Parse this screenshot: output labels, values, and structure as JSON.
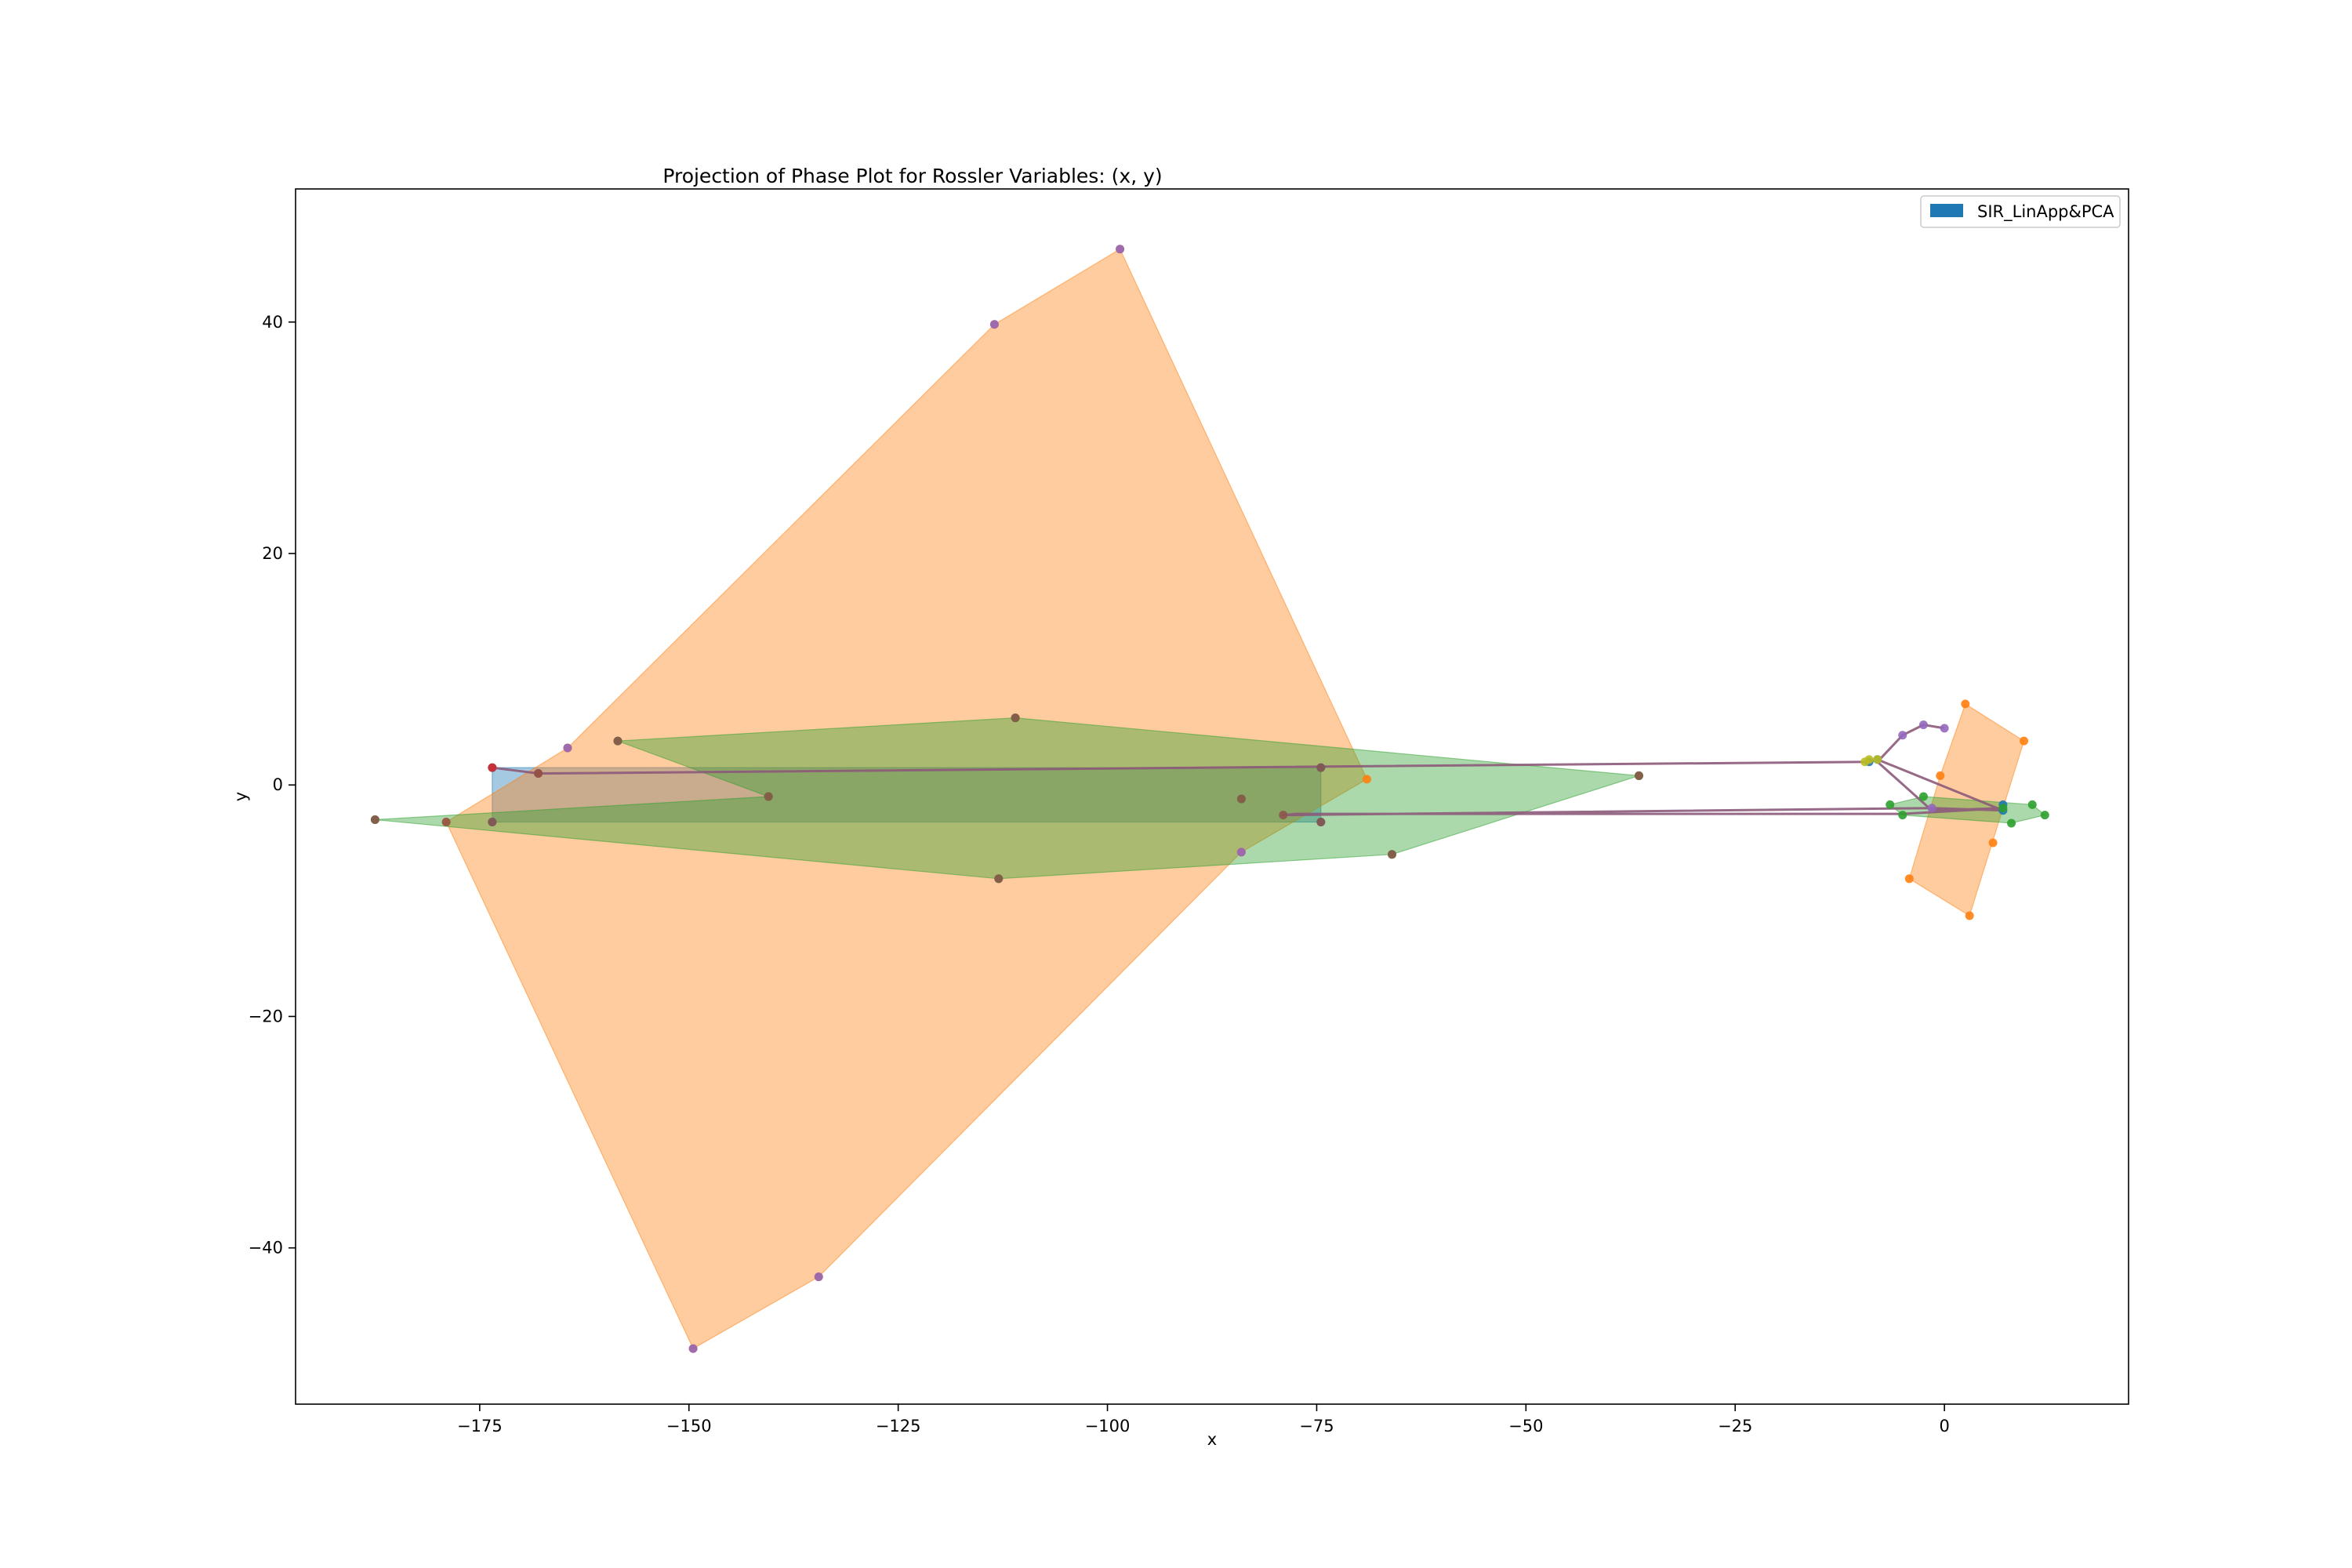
{
  "chart_data": {
    "type": "scatter",
    "title": "Projection of Phase Plot for Rossler Variables: (x, y)",
    "xlabel": "x",
    "ylabel": "y",
    "xlim": [
      -197,
      22
    ],
    "ylim": [
      -53.5,
      51.5
    ],
    "xticks": [
      -175,
      -150,
      -125,
      -100,
      -75,
      -50,
      -25,
      0
    ],
    "yticks": [
      -40,
      -20,
      0,
      20,
      40
    ],
    "xtick_labels": [
      "−175",
      "−150",
      "−125",
      "−100",
      "−75",
      "−50",
      "−25",
      "0"
    ],
    "ytick_labels": [
      "−40",
      "−20",
      "0",
      "20",
      "40"
    ],
    "grid": false,
    "legend": {
      "position": "top-right",
      "entries": [
        {
          "name": "SIR_LinApp&PCA",
          "color": "#1f77b4"
        }
      ]
    },
    "hulls": [
      {
        "color": "#1f77b4",
        "points": [
          [
            -173.5,
            1.5
          ],
          [
            -74.5,
            1.5
          ],
          [
            -74.5,
            -3.2
          ],
          [
            -173.5,
            -3.2
          ]
        ]
      },
      {
        "color": "#ff7f0e",
        "points": [
          [
            -98.5,
            46.3
          ],
          [
            -69,
            0.5
          ],
          [
            -84,
            -5.8
          ],
          [
            -134.5,
            -42.5
          ],
          [
            -149.5,
            -48.7
          ],
          [
            -179,
            -3.2
          ],
          [
            -164.5,
            3.2
          ],
          [
            -113.5,
            39.8
          ]
        ]
      },
      {
        "color": "#2ca02c",
        "points": [
          [
            -111,
            5.8
          ],
          [
            -36.5,
            0.8
          ],
          [
            -66,
            -6
          ],
          [
            -113,
            -8.1
          ],
          [
            -187.5,
            -3
          ],
          [
            -140.5,
            -1
          ],
          [
            -158.5,
            3.8
          ]
        ]
      },
      {
        "color": "#ff7f0e",
        "points": [
          [
            2.5,
            7
          ],
          [
            9.5,
            3.8
          ],
          [
            3,
            -11.3
          ],
          [
            -4.2,
            -8.1
          ],
          [
            -0.5,
            0.8
          ]
        ]
      },
      {
        "color": "#2ca02c",
        "points": [
          [
            -6.5,
            -1.7
          ],
          [
            -2.5,
            -1
          ],
          [
            10.5,
            -1.7
          ],
          [
            12,
            -2.6
          ],
          [
            8,
            -3.3
          ],
          [
            -5,
            -2.6
          ]
        ]
      }
    ],
    "series": [
      {
        "color": "#1f77b4",
        "points": [
          [
            -173.5,
            1.5
          ],
          [
            -74.5,
            1.5
          ],
          [
            -74.5,
            -3.2
          ],
          [
            -173.5,
            -3.2
          ],
          [
            -9,
            2
          ],
          [
            -8,
            2.2
          ],
          [
            7,
            -2.2
          ],
          [
            7,
            -1.7
          ]
        ]
      },
      {
        "color": "#ff7f0e",
        "points": [
          [
            -98.5,
            46.3
          ],
          [
            -113.5,
            39.8
          ],
          [
            -164.5,
            3.2
          ],
          [
            -179,
            -3.2
          ],
          [
            -149.5,
            -48.7
          ],
          [
            -134.5,
            -42.5
          ],
          [
            -84,
            -5.8
          ],
          [
            -69,
            0.5
          ],
          [
            2.5,
            7
          ],
          [
            9.5,
            3.8
          ],
          [
            -0.5,
            0.8
          ],
          [
            5.8,
            -5
          ],
          [
            -4.2,
            -8.1
          ],
          [
            3,
            -11.3
          ]
        ]
      },
      {
        "color": "#2ca02c",
        "points": [
          [
            -111,
            5.8
          ],
          [
            -158.5,
            3.8
          ],
          [
            -36.5,
            0.8
          ],
          [
            -140.5,
            -1
          ],
          [
            -187.5,
            -3
          ],
          [
            -113,
            -8.1
          ],
          [
            -66,
            -6
          ],
          [
            -84,
            -1.2
          ],
          [
            -2.5,
            -1
          ],
          [
            -6.5,
            -1.7
          ],
          [
            10.5,
            -1.7
          ],
          [
            12,
            -2.6
          ],
          [
            8,
            -3.3
          ],
          [
            -5,
            -2.6
          ],
          [
            7,
            -2
          ]
        ]
      },
      {
        "color": "#d62728",
        "points": [
          [
            -173.5,
            1.5
          ],
          [
            -168,
            1
          ]
        ]
      },
      {
        "color": "#9467bd",
        "points": [
          [
            -98.5,
            46.3
          ],
          [
            -113.5,
            39.8
          ],
          [
            -164.5,
            3.2
          ],
          [
            -149.5,
            -48.7
          ],
          [
            -134.5,
            -42.5
          ],
          [
            -84,
            -5.8
          ],
          [
            -2.5,
            5.2
          ],
          [
            0,
            4.9
          ],
          [
            -5,
            4.3
          ],
          [
            -1.5,
            -2
          ]
        ]
      },
      {
        "color": "#8c564b",
        "points": [
          [
            -111,
            5.8
          ],
          [
            -158.5,
            3.8
          ],
          [
            -36.5,
            0.8
          ],
          [
            -140.5,
            -1
          ],
          [
            -187.5,
            -3
          ],
          [
            -113,
            -8.1
          ],
          [
            -66,
            -6
          ],
          [
            -168,
            1
          ],
          [
            -74.5,
            1.5
          ],
          [
            -173.5,
            -3.2
          ],
          [
            -179,
            -3.2
          ],
          [
            -79,
            -2.6
          ],
          [
            -74.5,
            -3.2
          ],
          [
            -84,
            -1.2
          ]
        ]
      },
      {
        "color": "#bcbd22",
        "points": [
          [
            -9,
            2.2
          ],
          [
            -8,
            2.2
          ],
          [
            -9.5,
            2
          ]
        ]
      }
    ],
    "trajectory": {
      "color": "#8c5a7a",
      "points": [
        [
          -173.5,
          1.5
        ],
        [
          -168,
          1
        ],
        [
          -166.5,
          1
        ],
        [
          -9,
          2
        ],
        [
          -8,
          2.2
        ],
        [
          7,
          -2.2
        ],
        [
          -1.5,
          -2
        ],
        [
          -79,
          -2.6
        ],
        [
          -77.5,
          -2.5
        ],
        [
          -5,
          -2.5
        ],
        [
          7,
          -2
        ],
        [
          -1.5,
          -2.2
        ],
        [
          -8,
          2
        ],
        [
          -5,
          4.3
        ],
        [
          -2.5,
          5.2
        ],
        [
          0,
          4.9
        ]
      ]
    }
  }
}
